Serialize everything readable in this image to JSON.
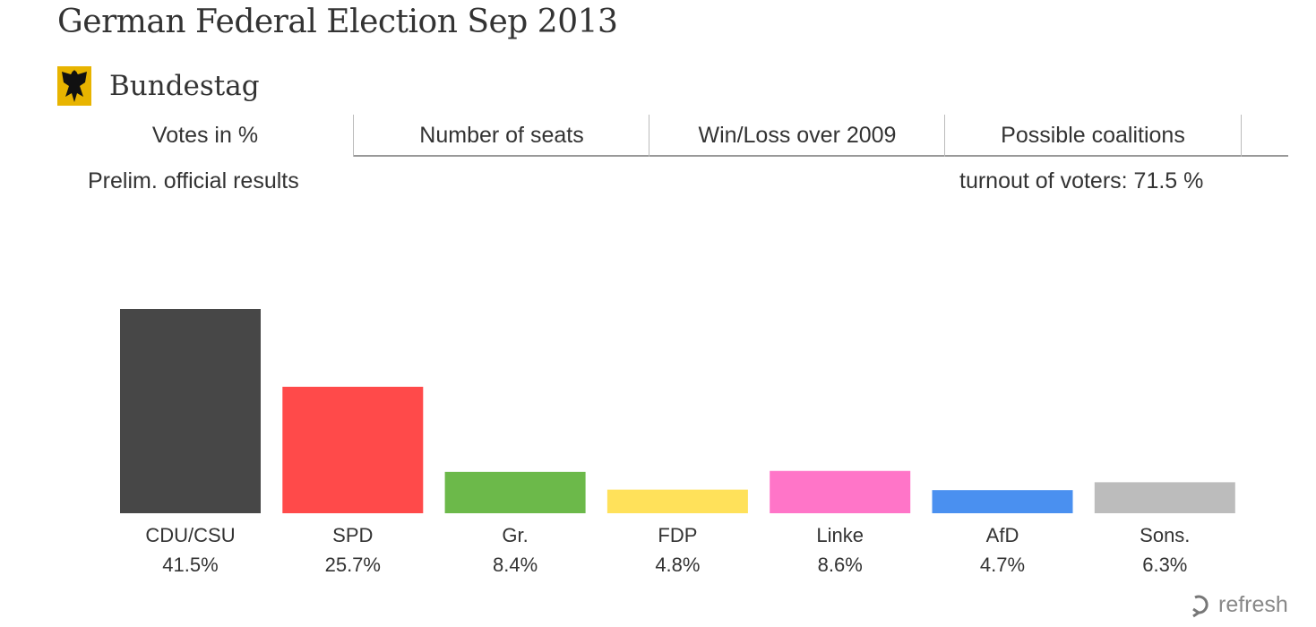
{
  "header": {
    "title": "German Federal Election Sep 2013",
    "subtitle": "Bundestag"
  },
  "tabs": [
    {
      "label": "Votes in %",
      "active": true
    },
    {
      "label": "Number of seats",
      "active": false
    },
    {
      "label": "Win/Loss over 2009",
      "active": false
    },
    {
      "label": "Possible coalitions",
      "active": false
    }
  ],
  "status": {
    "left": "Prelim. official results",
    "right": "turnout of voters: 71.5 %"
  },
  "refresh_label": "refresh",
  "chart_data": {
    "type": "bar",
    "title": "Votes in %",
    "xlabel": "",
    "ylabel": "",
    "ylim": [
      0,
      41.5
    ],
    "grid": false,
    "categories": [
      "CDU/CSU",
      "SPD",
      "Gr.",
      "FDP",
      "Linke",
      "AfD",
      "Sons."
    ],
    "values": [
      41.5,
      25.7,
      8.4,
      4.8,
      8.6,
      4.7,
      6.3
    ],
    "value_labels": [
      "41.5%",
      "25.7%",
      "8.4%",
      "4.8%",
      "8.6%",
      "4.7%",
      "6.3%"
    ],
    "colors": [
      "#474747",
      "#ff4a4a",
      "#6cb94a",
      "#ffe15a",
      "#ff75c8",
      "#4a90f0",
      "#bcbcbc"
    ]
  }
}
